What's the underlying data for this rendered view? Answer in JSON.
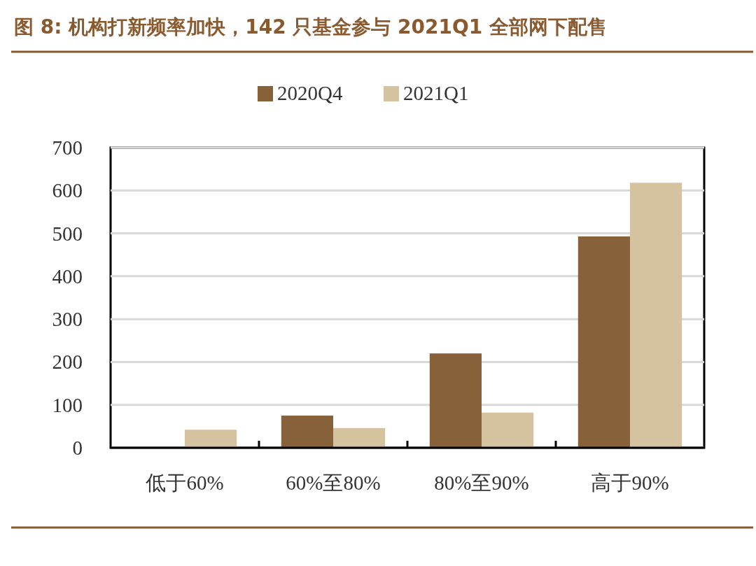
{
  "chart_data": {
    "type": "bar",
    "title": "图 8: 机构打新频率加快，142 只基金参与 2021Q1 全部网下配售",
    "categories": [
      "低于60%",
      "60%至80%",
      "80%至90%",
      "高于90%"
    ],
    "series": [
      {
        "name": "2020Q4",
        "color": "#86613a",
        "values": [
          0,
          75,
          220,
          493
        ]
      },
      {
        "name": "2021Q1",
        "color": "#d5c29e",
        "values": [
          42,
          46,
          82,
          618
        ]
      }
    ],
    "ylim": [
      0,
      700
    ],
    "yticks": [
      0,
      100,
      200,
      300,
      400,
      500,
      600,
      700
    ],
    "grid": "y",
    "legend": "top"
  }
}
